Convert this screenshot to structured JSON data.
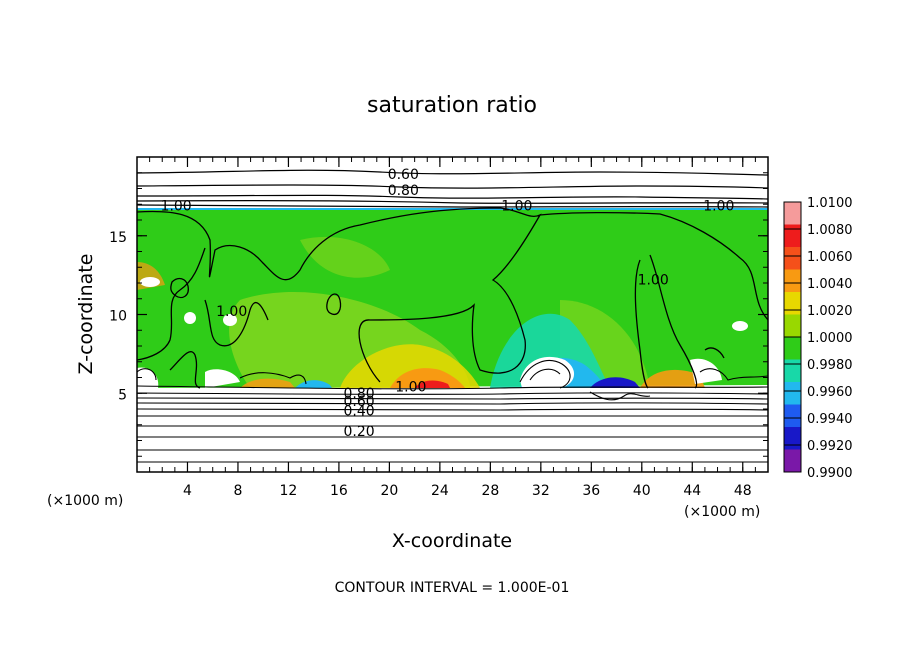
{
  "chart_data": {
    "type": "heatmap",
    "title": "saturation ratio",
    "xlabel": "X-coordinate",
    "ylabel": "Z-coordinate",
    "x_units": "(×1000 m)",
    "x_units_right": "(×1000 m)",
    "xlim": [
      0,
      50
    ],
    "ylim": [
      0,
      20
    ],
    "x_ticks": [
      "4",
      "8",
      "12",
      "16",
      "20",
      "24",
      "28",
      "32",
      "36",
      "40",
      "44",
      "48"
    ],
    "y_ticks": [
      "5",
      "10",
      "15"
    ],
    "colorbar": {
      "labels": [
        "1.0100",
        "1.0080",
        "1.0060",
        "1.0040",
        "1.0020",
        "1.0000",
        "0.9980",
        "0.9960",
        "0.9940",
        "0.9920",
        "0.9900"
      ],
      "colors": [
        "#f59b9b",
        "#ee1c1c",
        "#f5501a",
        "#f89a12",
        "#e8d800",
        "#99d800",
        "#2fcc18",
        "#18d8a8",
        "#22b8ee",
        "#1e5bf0",
        "#1818c8",
        "#7a18a8"
      ]
    },
    "contour_labels": [
      {
        "text": "0.60",
        "x": 21.1,
        "y": 18.6
      },
      {
        "text": "0.80",
        "x": 21.1,
        "y": 17.6
      },
      {
        "text": "1.00",
        "x": 3.1,
        "y": 16.6
      },
      {
        "text": "1.00",
        "x": 30.1,
        "y": 16.6
      },
      {
        "text": "1.00",
        "x": 46.1,
        "y": 16.6
      },
      {
        "text": "1.00",
        "x": 40.9,
        "y": 11.9
      },
      {
        "text": "1.00",
        "x": 7.5,
        "y": 9.9
      },
      {
        "text": "1.00",
        "x": 21.7,
        "y": 5.1
      },
      {
        "text": "0.80",
        "x": 17.6,
        "y": 4.7
      },
      {
        "text": "0.60",
        "x": 17.6,
        "y": 4.2
      },
      {
        "text": "0.40",
        "x": 17.6,
        "y": 3.6
      },
      {
        "text": "0.20",
        "x": 17.6,
        "y": 2.3
      }
    ],
    "contour_interval_text": "CONTOUR INTERVAL = 1.000E-01",
    "grid": false
  }
}
